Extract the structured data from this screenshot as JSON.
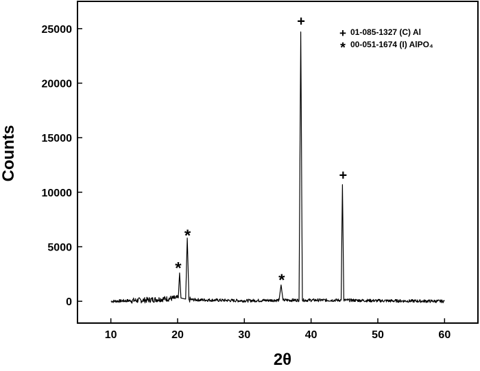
{
  "chart_data": {
    "type": "line",
    "title": "",
    "xlabel": "2θ",
    "ylabel": "Counts",
    "xlim": [
      5,
      65
    ],
    "ylim": [
      -2000,
      27500
    ],
    "x_ticks": [
      10,
      20,
      30,
      40,
      50,
      60
    ],
    "y_ticks": [
      0,
      5000,
      10000,
      15000,
      20000,
      25000
    ],
    "grid": false,
    "legend_position": "top-right",
    "legend": [
      {
        "symbol": "+",
        "label": "01-085-1327 (C) Al"
      },
      {
        "symbol": "*",
        "label": "00-051-1674 (I) AlPO₄"
      }
    ],
    "series": [
      {
        "x": [
          10,
          15,
          20.1,
          20.3,
          20.5,
          21.2,
          21.45,
          21.7,
          30,
          35.2,
          35.5,
          35.8,
          38.2,
          38.45,
          38.7,
          44.5,
          44.7,
          44.9,
          50,
          60
        ],
        "y": [
          0,
          100,
          300,
          2600,
          300,
          200,
          5800,
          150,
          50,
          100,
          1500,
          100,
          100,
          24700,
          100,
          100,
          10700,
          100,
          50,
          0
        ],
        "color": "#000000"
      }
    ],
    "peak_markers": [
      {
        "x": 20.1,
        "y": 3300,
        "symbol": "*"
      },
      {
        "x": 21.5,
        "y": 6300,
        "symbol": "*"
      },
      {
        "x": 35.6,
        "y": 2200,
        "symbol": "*"
      },
      {
        "x": 38.5,
        "y": 25700,
        "symbol": "+"
      },
      {
        "x": 44.8,
        "y": 11600,
        "symbol": "+"
      }
    ]
  }
}
